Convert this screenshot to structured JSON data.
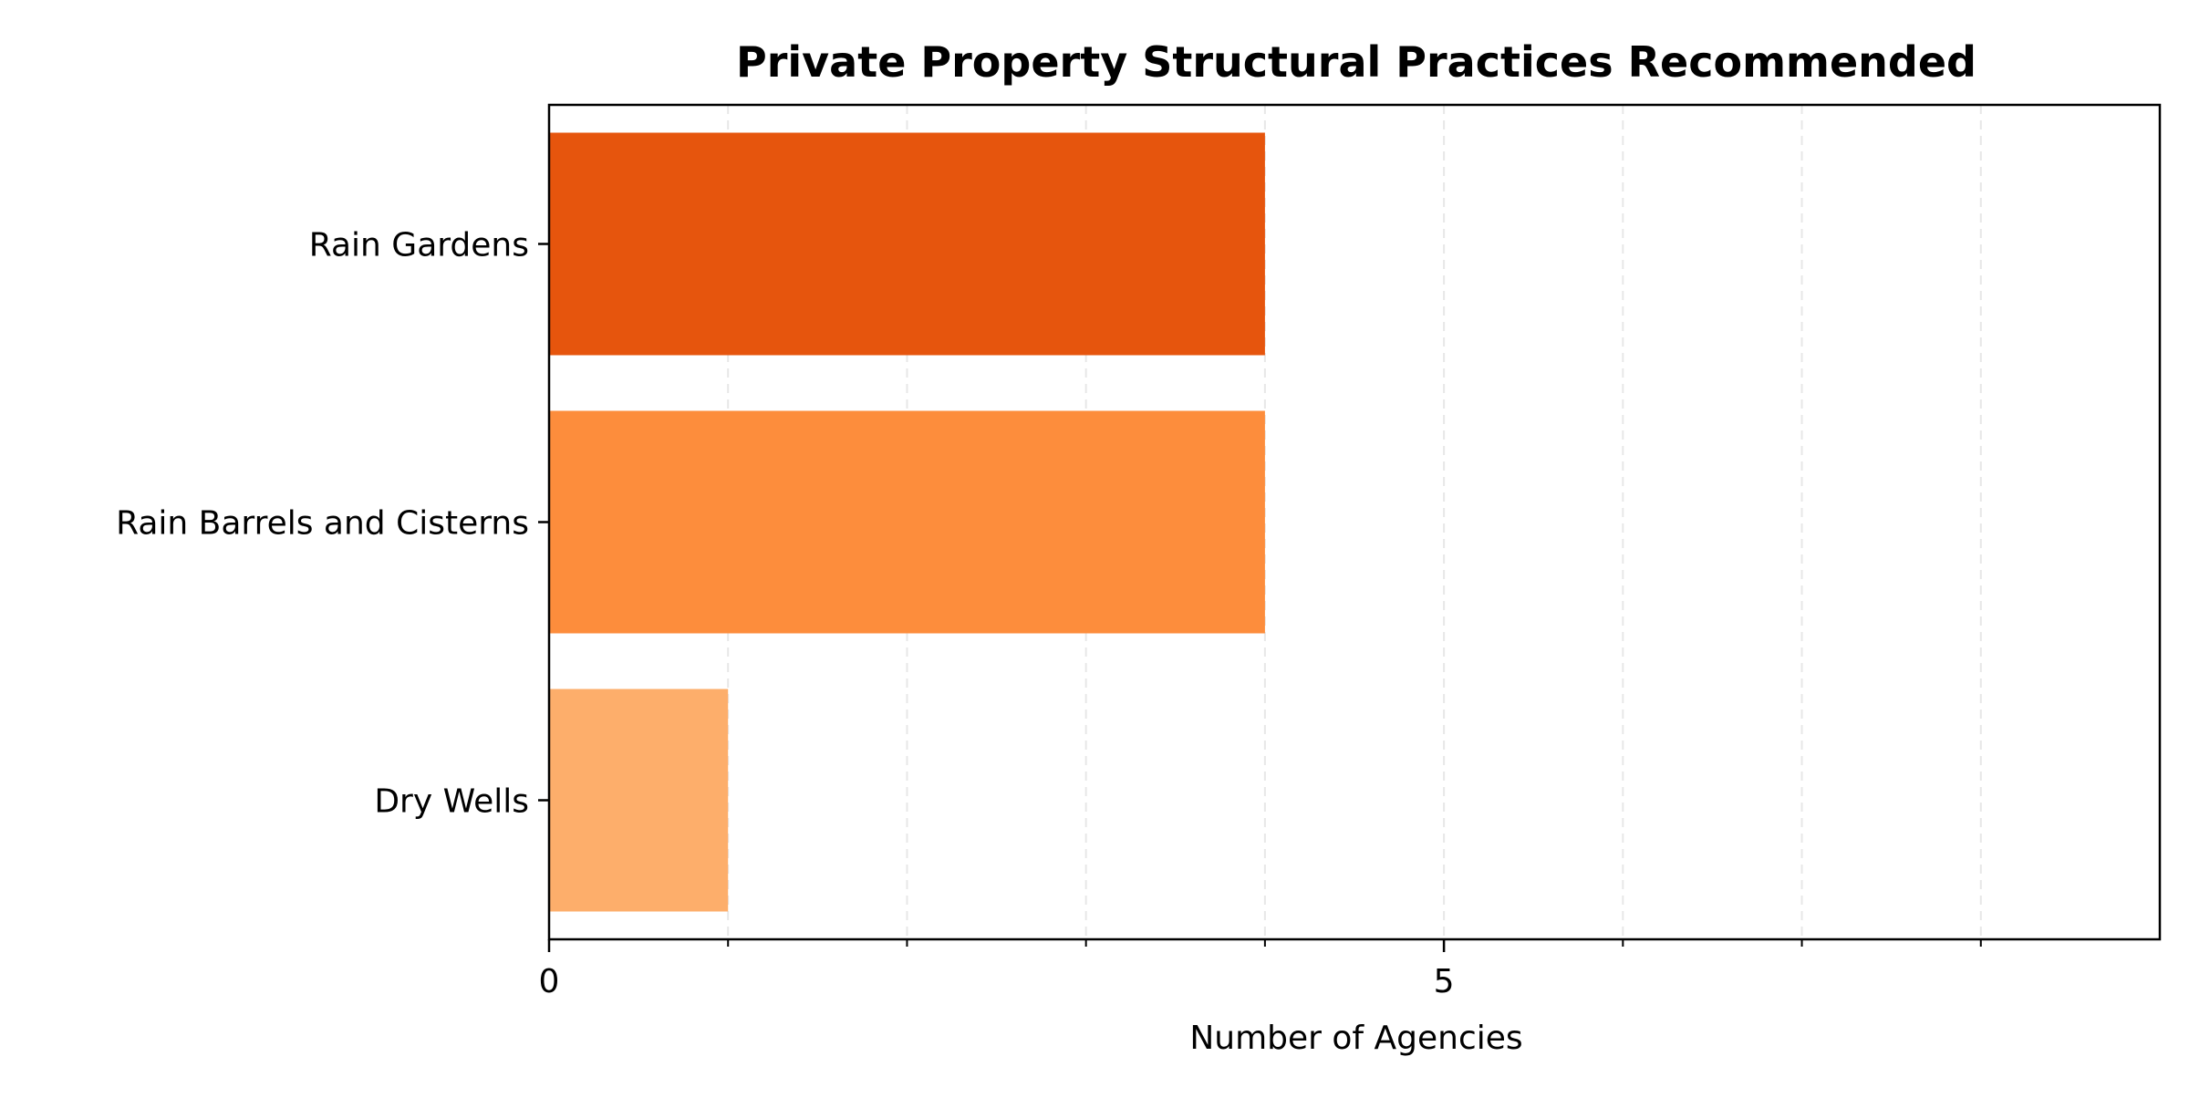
{
  "chart_data": {
    "type": "bar",
    "orientation": "horizontal",
    "title": "Private Property Structural Practices Recommended",
    "xlabel": "Number of Agencies",
    "ylabel": "",
    "categories": [
      "Rain Gardens",
      "Rain Barrels and Cisterns",
      "Dry Wells"
    ],
    "values": [
      4,
      4,
      1
    ],
    "colors": [
      "#e6550d",
      "#fd8d3c",
      "#fdae6b"
    ],
    "xlim": [
      0,
      9
    ],
    "x_ticks": [
      0,
      5
    ],
    "x_tick_labels": [
      "0",
      "5"
    ],
    "x_minor_ticks": [
      1,
      2,
      3,
      4,
      6,
      7,
      8
    ],
    "grid": "x-axis dashed",
    "legend": "none"
  }
}
